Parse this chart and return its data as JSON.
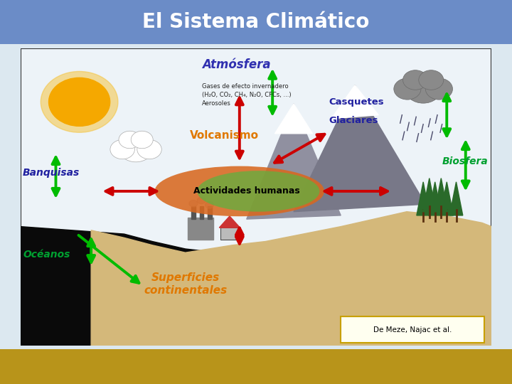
{
  "title": "El Sistema Climático",
  "title_color": "white",
  "title_bg": "#6b8cc7",
  "footer_bg": "#b8941a",
  "labels": {
    "atmosfera": "Atmósfera",
    "atmosfera_sub": "Gases de efecto invernadero\n(H₂O, CO₂, CH₄, N₂O, CFCs, ...)\nAerosoles",
    "volcanismo": "Volcanismo",
    "casquetes": "Casquetes",
    "glaciares": "Glaciares",
    "banquisas": "Banquisas",
    "oceanos": "Océanos",
    "biosfera": "Biosfera",
    "actividades": "Actividades humanas",
    "superficies": "Superficies\ncontinentales",
    "referencia": "De Meze, Najac et al."
  },
  "colors": {
    "atmosfera": "#3030b0",
    "volcanismo": "#e07800",
    "casquetes": "#2020a0",
    "glaciares": "#2020a0",
    "banquisas": "#2020a0",
    "oceanos": "#00a030",
    "biosfera": "#00a030",
    "actividades": "black",
    "superficies": "#e07800",
    "arrow_green": "#00bb00",
    "arrow_red": "#cc0000",
    "sky_bg": "#dce8f0",
    "main_border": "#333333",
    "land_sandy": "#d4b87a",
    "land_dark": "#111111",
    "mountain1": "#9090a0",
    "mountain2": "#787888",
    "snow": "white",
    "tree": "#2a6a2a",
    "cloud_white": "white",
    "cloud_gray": "#909090",
    "sun_inner": "#f5a800",
    "sun_outer": "#f5c030",
    "ellipse_orange": "#d86820",
    "ellipse_green": "#60b040",
    "rain_dot": "#4a4a6a"
  },
  "figure_size": [
    7.2,
    5.4
  ],
  "dpi": 100
}
